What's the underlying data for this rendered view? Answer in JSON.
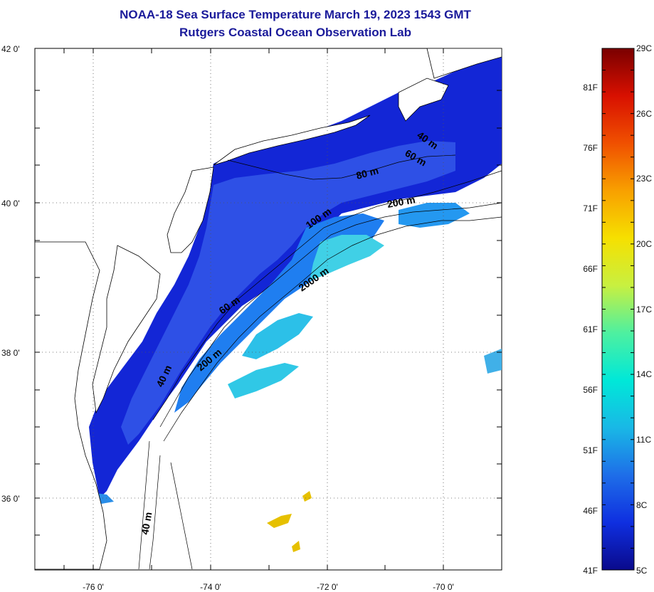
{
  "title": {
    "line1": "NOAA-18 Sea Surface Temperature March 19, 2023 1543 GMT",
    "line2": "Rutgers Coastal Ocean Observation Lab"
  },
  "axes": {
    "lat_labels": [
      "42 0'",
      "40 0'",
      "38 0'",
      "36 0'"
    ],
    "lat_values": [
      42,
      40,
      38,
      36
    ],
    "lon_labels": [
      "-76 0'",
      "-74 0'",
      "-72 0'",
      "-70 0'"
    ],
    "lon_values": [
      -76,
      -74,
      -72,
      -70
    ],
    "lat_range": [
      35,
      42.2
    ],
    "lon_range": [
      -77,
      -69
    ]
  },
  "contour_labels": [
    "40 m",
    "40 m",
    "60 m",
    "200 m",
    "2000 m",
    "100 m",
    "200 m",
    "80 m",
    "60 m",
    "40 m"
  ],
  "colorbar": {
    "fahrenheit": [
      "81F",
      "76F",
      "71F",
      "66F",
      "61F",
      "56F",
      "51F",
      "46F",
      "41F"
    ],
    "celsius": [
      "29C",
      "26C",
      "23C",
      "20C",
      "17C",
      "14C",
      "11C",
      "8C",
      "5C"
    ],
    "range_c": [
      5,
      29
    ],
    "stops": [
      "#0a0a8c",
      "#0f2fe0",
      "#1e6ee8",
      "#19b8e6",
      "#00e8d8",
      "#4ef0a0",
      "#c8f040",
      "#f6e000",
      "#f8a000",
      "#f05000",
      "#d81000",
      "#7a0000"
    ]
  },
  "colors": {
    "cold_water": "#1224d8",
    "shelf_water": "#2040e8",
    "slope_water": "#1e8ef0",
    "warm_patch": "#3cd8e0",
    "gulf_stream": "#e8c000"
  }
}
